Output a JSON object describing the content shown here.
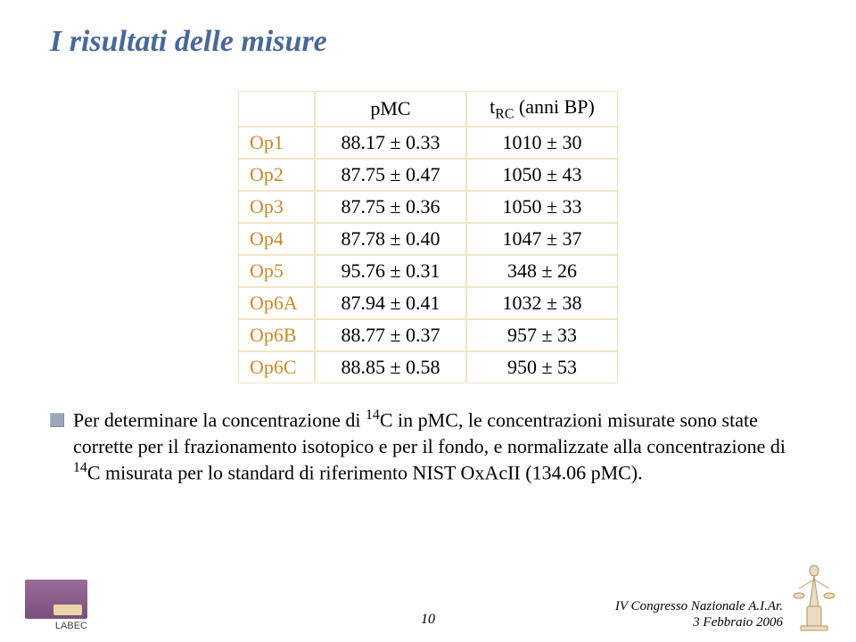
{
  "title": "I risultati delle misure",
  "table": {
    "header_col0": "",
    "header_col1": "pMC",
    "header_col2_html": "t<sub>RC</sub> (anni BP)",
    "rows": [
      {
        "label": "Op1",
        "pmc": "88.17 ± 0.33",
        "trc": "1010 ± 30"
      },
      {
        "label": "Op2",
        "pmc": "87.75 ± 0.47",
        "trc": "1050 ± 43"
      },
      {
        "label": "Op3",
        "pmc": "87.75 ± 0.36",
        "trc": "1050 ± 33"
      },
      {
        "label": "Op4",
        "pmc": "87.78 ± 0.40",
        "trc": "1047 ± 37"
      },
      {
        "label": "Op5",
        "pmc": "95.76 ± 0.31",
        "trc": "348 ± 26"
      },
      {
        "label": "Op6A",
        "pmc": "87.94 ± 0.41",
        "trc": "1032 ± 38"
      },
      {
        "label": "Op6B",
        "pmc": "88.77 ± 0.37",
        "trc": "957 ± 33"
      },
      {
        "label": "Op6C",
        "pmc": "88.85 ± 0.58",
        "trc": "950 ± 53"
      }
    ],
    "border_color": "#f2e5c4",
    "label_color": "#c88a2a"
  },
  "body_html": "Per determinare la concentrazione di <sup>14</sup>C in pMC, le concentrazioni misurate sono state corrette per il frazionamento isotopico e per il fondo, e normalizzate alla concentrazione di <sup>14</sup>C misurata per lo standard di riferimento NIST OxAcII (134.06 pMC).",
  "footer": {
    "logo_label": "LABEC",
    "page_number": "10",
    "conference": "IV Congresso Nazionale A.I.Ar.",
    "date": "3 Febbraio 2006"
  },
  "colors": {
    "title": "#496898",
    "bullet": "#9aa7b7",
    "background": "#ffffff"
  }
}
